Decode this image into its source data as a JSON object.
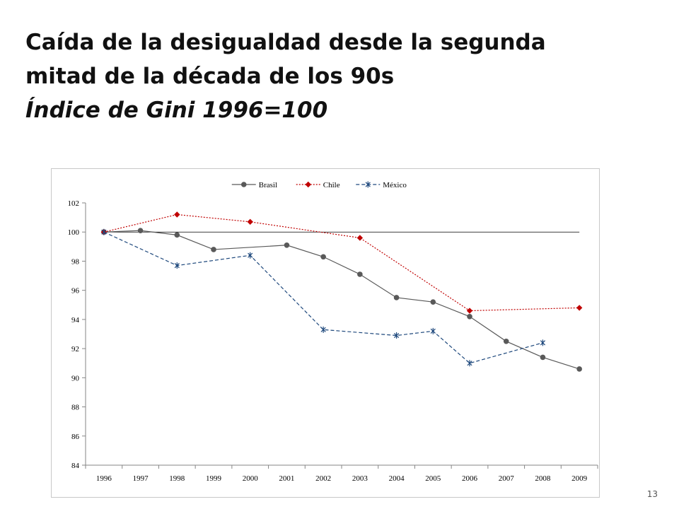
{
  "slide": {
    "title_line1": "Caída de la desigualdad desde la segunda",
    "title_line2": "mitad de la década de los 90s",
    "subtitle": "Índice de Gini 1996=100",
    "page_number": "13"
  },
  "chart_data": {
    "type": "line",
    "title": "",
    "xlabel": "",
    "ylabel": "",
    "categories": [
      "1996",
      "1997",
      "1998",
      "1999",
      "2000",
      "2001",
      "2002",
      "2003",
      "2004",
      "2005",
      "2006",
      "2007",
      "2008",
      "2009"
    ],
    "ylim": [
      84,
      102
    ],
    "yticks": [
      84,
      86,
      88,
      90,
      92,
      94,
      96,
      98,
      100,
      102
    ],
    "grid": false,
    "legend_position": "top",
    "reference_line": 100,
    "series": [
      {
        "name": "Brasil",
        "color": "#595959",
        "dash": "solid",
        "marker": "circle",
        "values": [
          100.0,
          100.1,
          99.8,
          98.8,
          null,
          99.1,
          98.3,
          97.1,
          95.5,
          95.2,
          94.2,
          92.5,
          91.4,
          90.6
        ]
      },
      {
        "name": "Chile",
        "color": "#c00000",
        "dash": "dotted",
        "marker": "diamond",
        "values": [
          100.0,
          null,
          101.2,
          null,
          100.7,
          null,
          null,
          99.6,
          null,
          null,
          94.6,
          null,
          null,
          94.8
        ]
      },
      {
        "name": "México",
        "color": "#1f497d",
        "dash": "dashed",
        "marker": "asterisk",
        "values": [
          100.0,
          null,
          97.7,
          null,
          98.4,
          null,
          93.3,
          null,
          92.9,
          93.2,
          91.0,
          null,
          92.4,
          null
        ]
      }
    ]
  }
}
